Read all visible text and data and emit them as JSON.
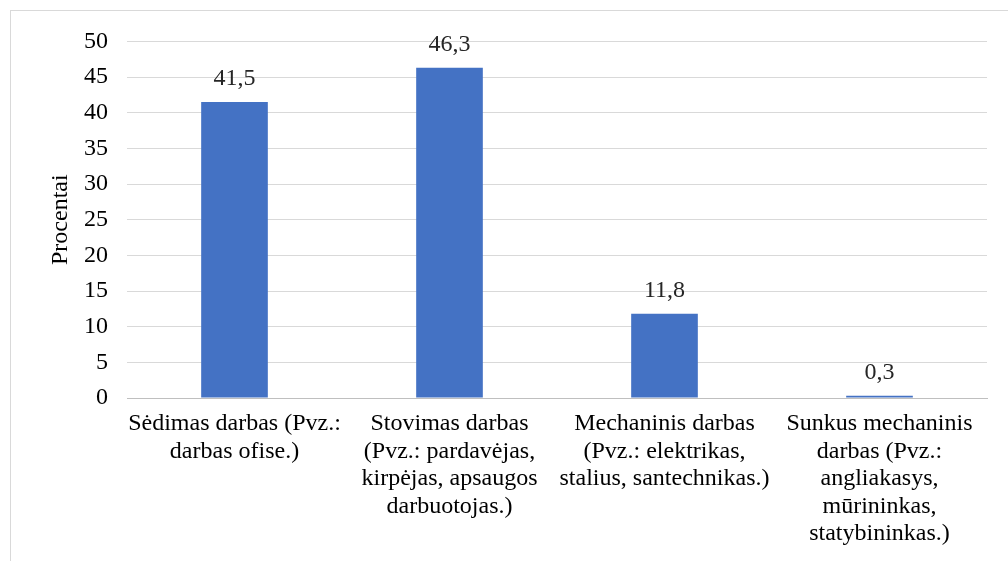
{
  "chart_data": {
    "type": "bar",
    "ylabel": "Procentai",
    "categories": [
      "Sėdimas darbas (Pvz.: darbas ofise.)",
      "Stovimas darbas (Pvz.: pardavėjas, kirpėjas, apsaugos darbuotojas.)",
      "Mechaninis darbas (Pvz.: elektrikas, stalius, santechnikas.)",
      "Sunkus mechaninis darbas (Pvz.: angliakasys, mūrininkas, statybininkas.)"
    ],
    "values": [
      41.5,
      46.3,
      11.8,
      0.3
    ],
    "value_labels": [
      "41,5",
      "46,3",
      "11,8",
      "0,3"
    ],
    "color": "#4472c4",
    "ylim": [
      0,
      50
    ],
    "yticks": [
      0,
      5,
      10,
      15,
      20,
      25,
      30,
      35,
      40,
      45,
      50
    ],
    "grid": "y"
  }
}
